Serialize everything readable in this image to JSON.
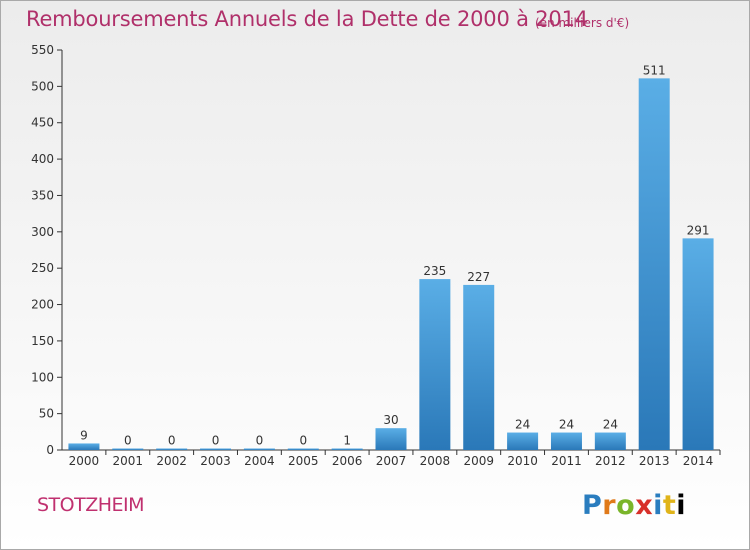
{
  "chart_data": {
    "type": "bar",
    "title": "Remboursements Annuels de la Dette de 2000 à 2014",
    "subtitle": "(en milliers d'€)",
    "categories": [
      "2000",
      "2001",
      "2002",
      "2003",
      "2004",
      "2005",
      "2006",
      "2007",
      "2008",
      "2009",
      "2010",
      "2011",
      "2012",
      "2013",
      "2014"
    ],
    "values": [
      9,
      0,
      0,
      0,
      0,
      0,
      1,
      30,
      235,
      227,
      24,
      24,
      24,
      511,
      291
    ],
    "ylim": [
      0,
      550
    ],
    "yticks": [
      0,
      50,
      100,
      150,
      200,
      250,
      300,
      350,
      400,
      450,
      500,
      550
    ],
    "grid": false,
    "bar_color_top": "#5aaee6",
    "bar_color_bottom": "#2a78b8"
  },
  "footer": {
    "town": "STOTZHEIM",
    "logo_letters": [
      "P",
      "r",
      "o",
      "x",
      "i",
      "t",
      "i"
    ]
  }
}
